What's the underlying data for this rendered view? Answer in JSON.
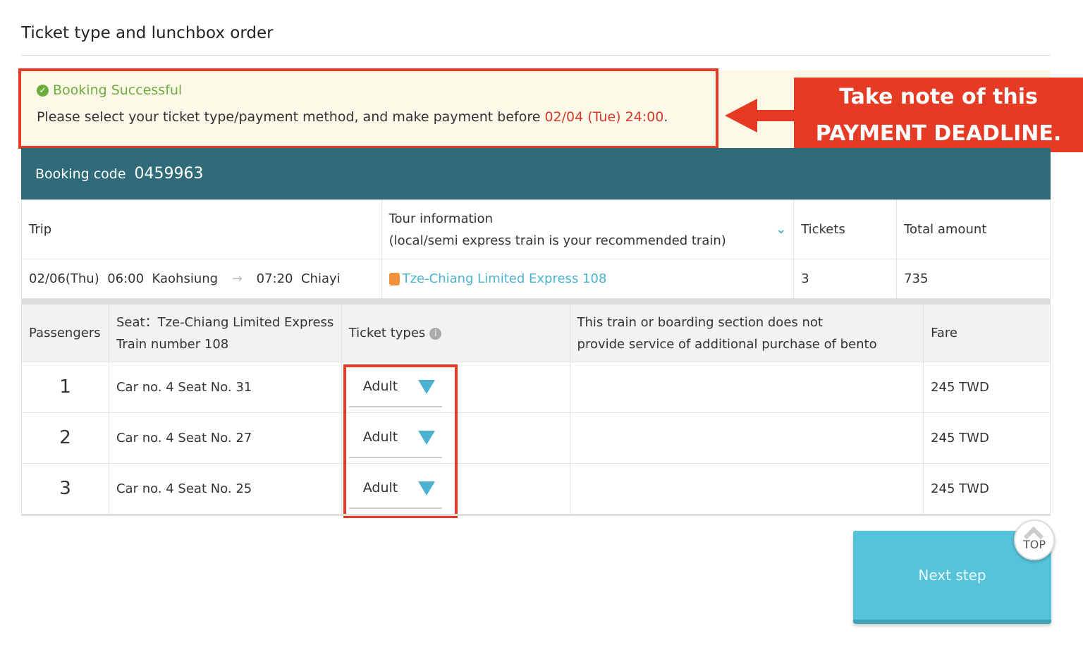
{
  "title": "Ticket type and lunchbox order",
  "notice": {
    "status": "Booking Successful",
    "message": "Please select your ticket type/payment method, and make payment before ",
    "deadline": "02/04 (Tue) 24:00",
    "period": "."
  },
  "callout": {
    "line1": "Take note of this",
    "line2": "PAYMENT DEADLINE."
  },
  "booking": {
    "label": "Booking code",
    "code": "0459963"
  },
  "trip_table": {
    "headers": {
      "trip": "Trip",
      "tour1": "Tour information",
      "tour2": "(local/semi express train is your recommended train)",
      "tickets": "Tickets",
      "total": "Total amount"
    },
    "row": {
      "date": "02/06(Thu)",
      "dep_time": "06:00",
      "dep": "Kaohsiung",
      "arr_time": "07:20",
      "arr": "Chiayi",
      "train": "Tze-Chiang Limited Express 108",
      "tickets": "3",
      "total": "735"
    }
  },
  "passenger_table": {
    "headers": {
      "passengers": "Passengers",
      "seat1": "Seat：Tze-Chiang Limited Express",
      "seat2": "Train number 108",
      "ticket_types": "Ticket types",
      "bento1": "This train or boarding section does not",
      "bento2": "provide service of additional purchase of bento",
      "fare": "Fare"
    },
    "rows": [
      {
        "num": "1",
        "seat": "Car no. 4 Seat No. 31",
        "type": "Adult",
        "fare": "245 TWD"
      },
      {
        "num": "2",
        "seat": "Car no. 4 Seat No. 27",
        "type": "Adult",
        "fare": "245 TWD"
      },
      {
        "num": "3",
        "seat": "Car no. 4 Seat No. 25",
        "type": "Adult",
        "fare": "245 TWD"
      }
    ]
  },
  "next_label": "Next step",
  "top_label": "TOP",
  "colors": {
    "header": "#2f6b78",
    "accent": "#4bb3cf",
    "highlight": "#e53a23",
    "success": "#6cad3d"
  }
}
